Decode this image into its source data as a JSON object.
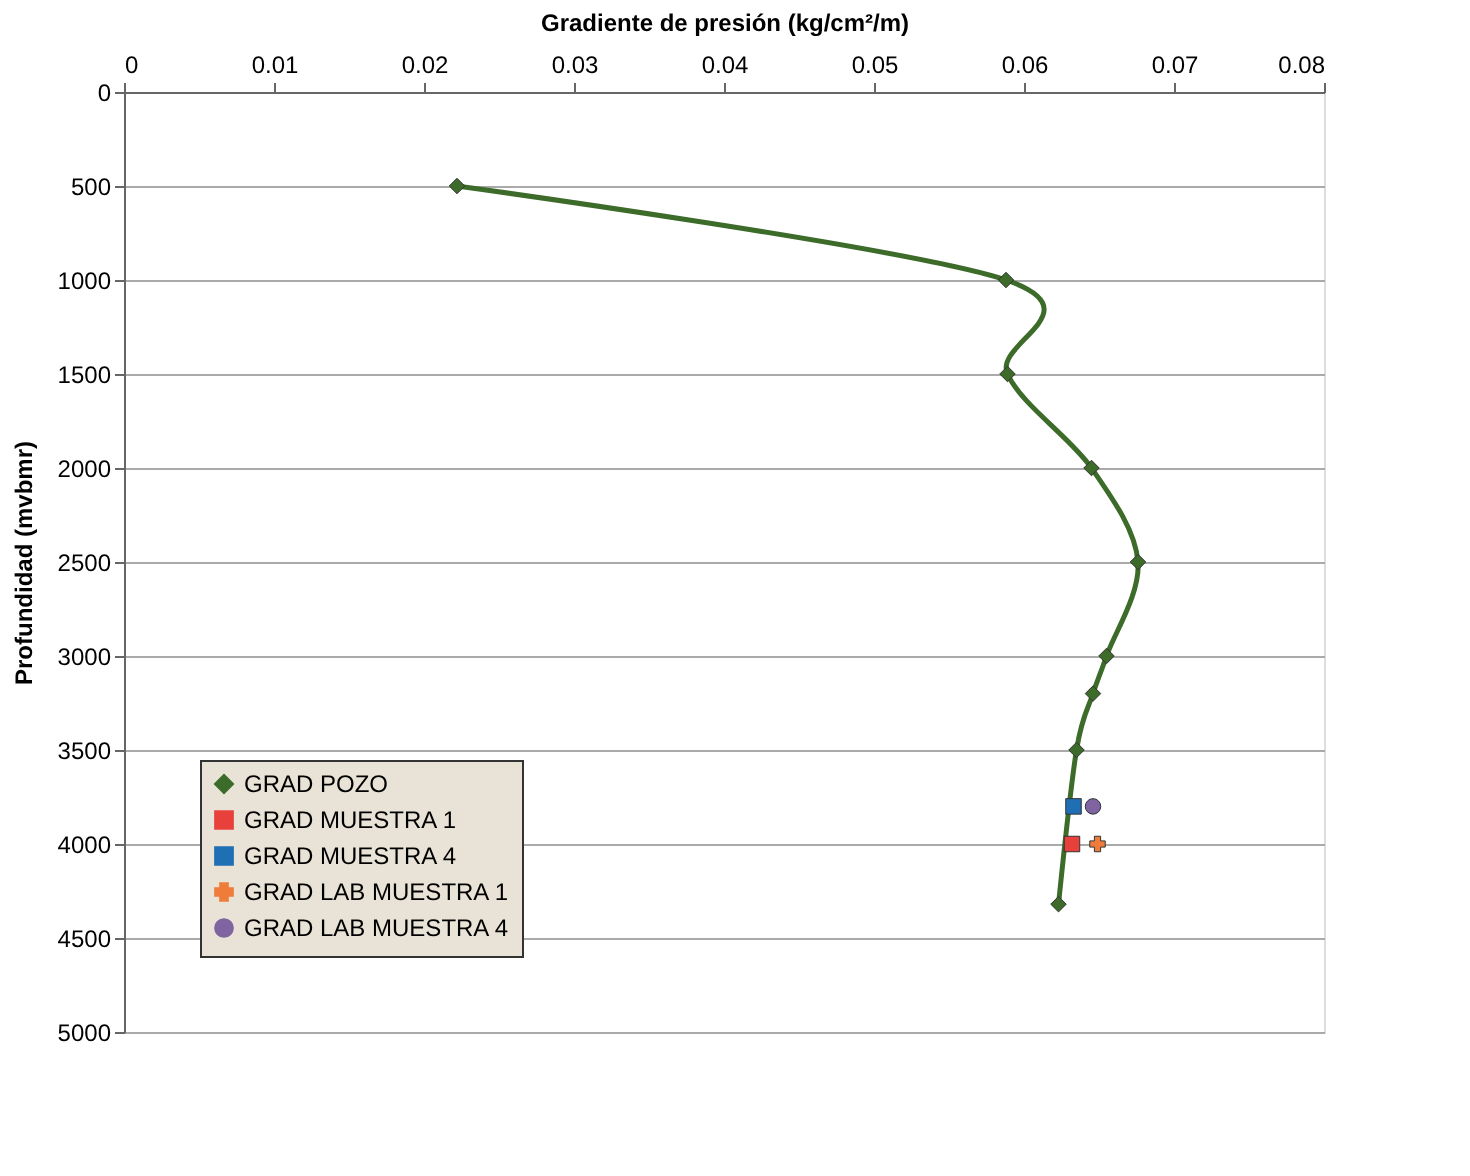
{
  "chart_data": {
    "type": "line",
    "xlabel": "Gradiente de presión (kg/cm²/m)",
    "ylabel": "Profundidad (mvbmr)",
    "xlim": [
      0,
      0.08
    ],
    "xticks": [
      0,
      0.01,
      0.02,
      0.03,
      0.04,
      0.05,
      0.06,
      0.07,
      0.08
    ],
    "ylim": [
      5000,
      0
    ],
    "yticks": [
      0,
      500,
      1000,
      1500,
      2000,
      2500,
      3000,
      3500,
      4000,
      4500,
      5000
    ],
    "grid": "y",
    "legend": "bottom left",
    "series": [
      {
        "name": "GRAD POZO",
        "marker": "diamond",
        "color": "#3d6b2a",
        "x": [
          0.0222,
          0.0588,
          0.0589,
          0.0645,
          0.0676,
          0.0655,
          0.0646,
          0.0635,
          0.0623
        ],
        "values": [
          500,
          1000,
          1500,
          2000,
          2500,
          3000,
          3200,
          3500,
          4320
        ]
      },
      {
        "name": "GRAD MUESTRA 1",
        "type": "scatter",
        "marker": "square",
        "color": "#e8413c",
        "x": [
          0.0632
        ],
        "values": [
          4000
        ]
      },
      {
        "name": "GRAD MUESTRA 4",
        "type": "scatter",
        "marker": "square",
        "color": "#1f6fb4",
        "x": [
          0.0633
        ],
        "values": [
          3800
        ]
      },
      {
        "name": "GRAD LAB MUESTRA 1",
        "type": "scatter",
        "marker": "cross",
        "color": "#f07c3c",
        "x": [
          0.0649
        ],
        "values": [
          4000
        ]
      },
      {
        "name": "GRAD LAB MUESTRA 4",
        "type": "scatter",
        "marker": "circle",
        "color": "#8064a2",
        "x": [
          0.0646
        ],
        "values": [
          3800
        ]
      }
    ]
  }
}
